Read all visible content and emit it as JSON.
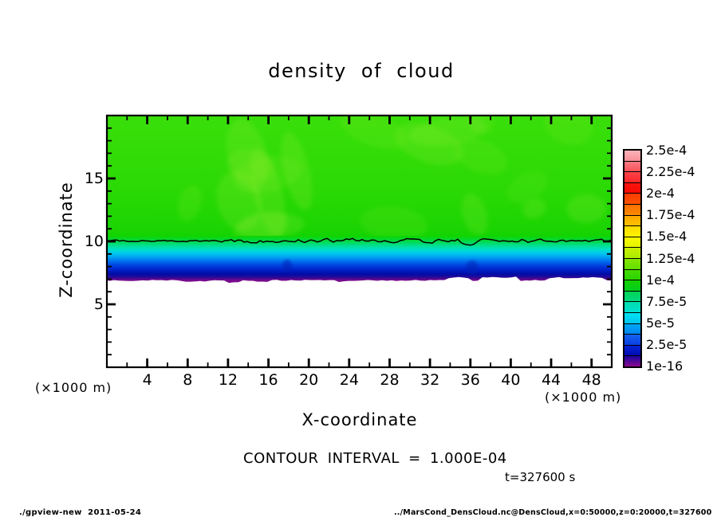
{
  "title": "density of cloud",
  "annotations": {
    "contour_interval_text": "CONTOUR INTERVAL = 1.000E-04",
    "time_text": "t=327600 s"
  },
  "footer": {
    "left": "./gpview-new  2011-05-24",
    "right": "../MarsCond_DensCloud.nc@DensCloud,x=0:50000,z=0:20000,t=327600"
  },
  "chart_data": {
    "type": "heatmap",
    "title": "density of cloud",
    "xlabel": "X-coordinate",
    "ylabel": "Z-coordinate",
    "x_axis": {
      "factor_label": "(×1000 m)",
      "range": [
        0,
        50
      ],
      "labeled_ticks": [
        4,
        8,
        12,
        16,
        20,
        24,
        28,
        32,
        36,
        40,
        44,
        48
      ],
      "minor_tick_step": 2
    },
    "z_axis": {
      "factor_label": "(×1000 m)",
      "range": [
        0,
        20
      ],
      "labeled_ticks": [
        5,
        10,
        15
      ],
      "minor_tick_step": 1
    },
    "contour": {
      "interval": "1.000E-04",
      "visible_line_value": 0.0001,
      "visible_line_z_approx": 10
    },
    "time_seconds": 327600,
    "colorbar": {
      "labels_top_to_bottom": [
        "2.5e-4",
        "2.25e-4",
        "2e-4",
        "1.75e-4",
        "1.5e-4",
        "1.25e-4",
        "1e-4",
        "7.5e-5",
        "5e-5",
        "2.5e-5",
        "1e-16"
      ],
      "cells_top_to_bottom": [
        [
          "#FAB2B8",
          "#F89098"
        ],
        [
          "#F97A82",
          "#FA525A"
        ],
        [
          "#FA444A",
          "#FB262A"
        ],
        [
          "#FB1410",
          "#F70A04"
        ],
        [
          "#FB3A00",
          "#FB5400"
        ],
        [
          "#FC6E00",
          "#FC8A00"
        ],
        [
          "#FDA600",
          "#FDC200"
        ],
        [
          "#FEDA00",
          "#FEF200"
        ],
        [
          "#FAFA00",
          "#E2F400"
        ],
        [
          "#CAF000",
          "#AAEC00"
        ],
        [
          "#86E600",
          "#62DE00"
        ],
        [
          "#46DA00",
          "#2AD400"
        ],
        [
          "#16D000",
          "#00CE20"
        ],
        [
          "#00D452",
          "#00D882"
        ],
        [
          "#00DCAC",
          "#00E0D2"
        ],
        [
          "#00E4F0",
          "#00C6F2"
        ],
        [
          "#00A8F4",
          "#0086F2"
        ],
        [
          "#1464EE",
          "#0A3EE4"
        ],
        [
          "#0422D6",
          "#000CB2"
        ],
        [
          "#1804A2",
          "#8A0A8C"
        ]
      ]
    },
    "field": {
      "description": "Cloud density nearly uniform in x; green layer (~1.1e-4) from z~10 to z=20, sharp vertical gradient between z~7 and z~10 passing through 7.5e-5, 5e-5 and 2.5e-5 bands, zero (white) below z~7. Black contour line is the 1e-4 level at z~10.",
      "z_profile_approx": [
        {
          "z_x1000m": 20.0,
          "density": 0.000115
        },
        {
          "z_x1000m": 15.0,
          "density": 0.000115
        },
        {
          "z_x1000m": 12.0,
          "density": 0.00011
        },
        {
          "z_x1000m": 10.0,
          "density": 0.0001
        },
        {
          "z_x1000m": 9.5,
          "density": 8e-05
        },
        {
          "z_x1000m": 9.0,
          "density": 6e-05
        },
        {
          "z_x1000m": 8.5,
          "density": 4e-05
        },
        {
          "z_x1000m": 8.0,
          "density": 2e-05
        },
        {
          "z_x1000m": 7.5,
          "density": 5e-06
        },
        {
          "z_x1000m": 7.0,
          "density": 0
        },
        {
          "z_x1000m": 0.0,
          "density": 0
        }
      ]
    },
    "band_gradient_stops": [
      {
        "offset": 0.0,
        "color": "#3ADF0A"
      },
      {
        "offset": 0.45,
        "color": "#2BD904"
      },
      {
        "offset": 0.7,
        "color": "#1AD402"
      },
      {
        "offset": 0.73,
        "color": "#12D400"
      },
      {
        "offset": 0.758,
        "color": "#00D83C"
      },
      {
        "offset": 0.787,
        "color": "#00DE8C"
      },
      {
        "offset": 0.812,
        "color": "#00E0C8"
      },
      {
        "offset": 0.836,
        "color": "#00C8EE"
      },
      {
        "offset": 0.86,
        "color": "#00A0F2"
      },
      {
        "offset": 0.884,
        "color": "#0070EE"
      },
      {
        "offset": 0.908,
        "color": "#0044E0"
      },
      {
        "offset": 0.937,
        "color": "#0020C8"
      },
      {
        "offset": 0.961,
        "color": "#000CA6"
      },
      {
        "offset": 0.981,
        "color": "#2A0A96"
      },
      {
        "offset": 1.0,
        "color": "#7A0A8C"
      }
    ],
    "frame_color": "#000000",
    "contour_line_color": "#000000"
  }
}
